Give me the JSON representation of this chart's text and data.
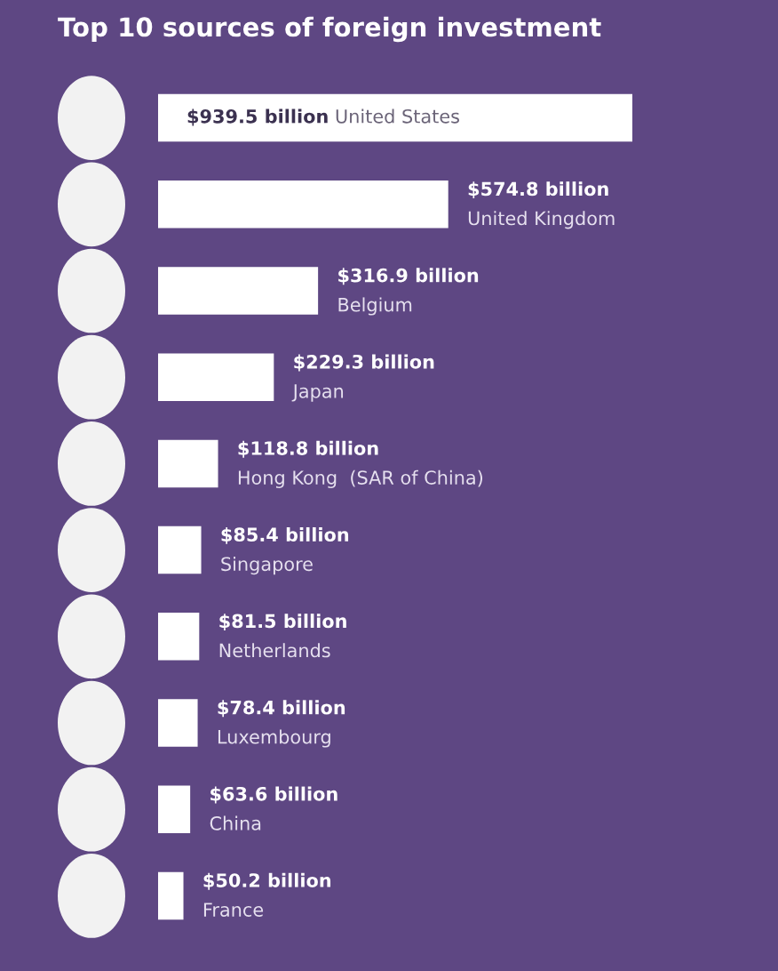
{
  "chart_data": {
    "type": "bar",
    "orientation": "horizontal",
    "title": "Top 10 sources of foreign investment",
    "categories": [
      "United States",
      "United Kingdom",
      "Belgium",
      "Japan",
      "Hong Kong  (SAR of China)",
      "Singapore",
      "Netherlands",
      "Luxembourg",
      "China",
      "France"
    ],
    "values": [
      939.5,
      574.8,
      316.9,
      229.3,
      118.8,
      85.4,
      81.5,
      78.4,
      63.6,
      50.2
    ],
    "value_labels": [
      "$939.5 billion",
      "$574.8 billion",
      "$316.9 billion",
      "$229.3 billion",
      "$118.8 billion",
      "$85.4 billion",
      "$81.5 billion",
      "$78.4 billion",
      "$63.6 billion",
      "$50.2 billion"
    ],
    "color": "#ffffff",
    "tick_labels": false
  }
}
